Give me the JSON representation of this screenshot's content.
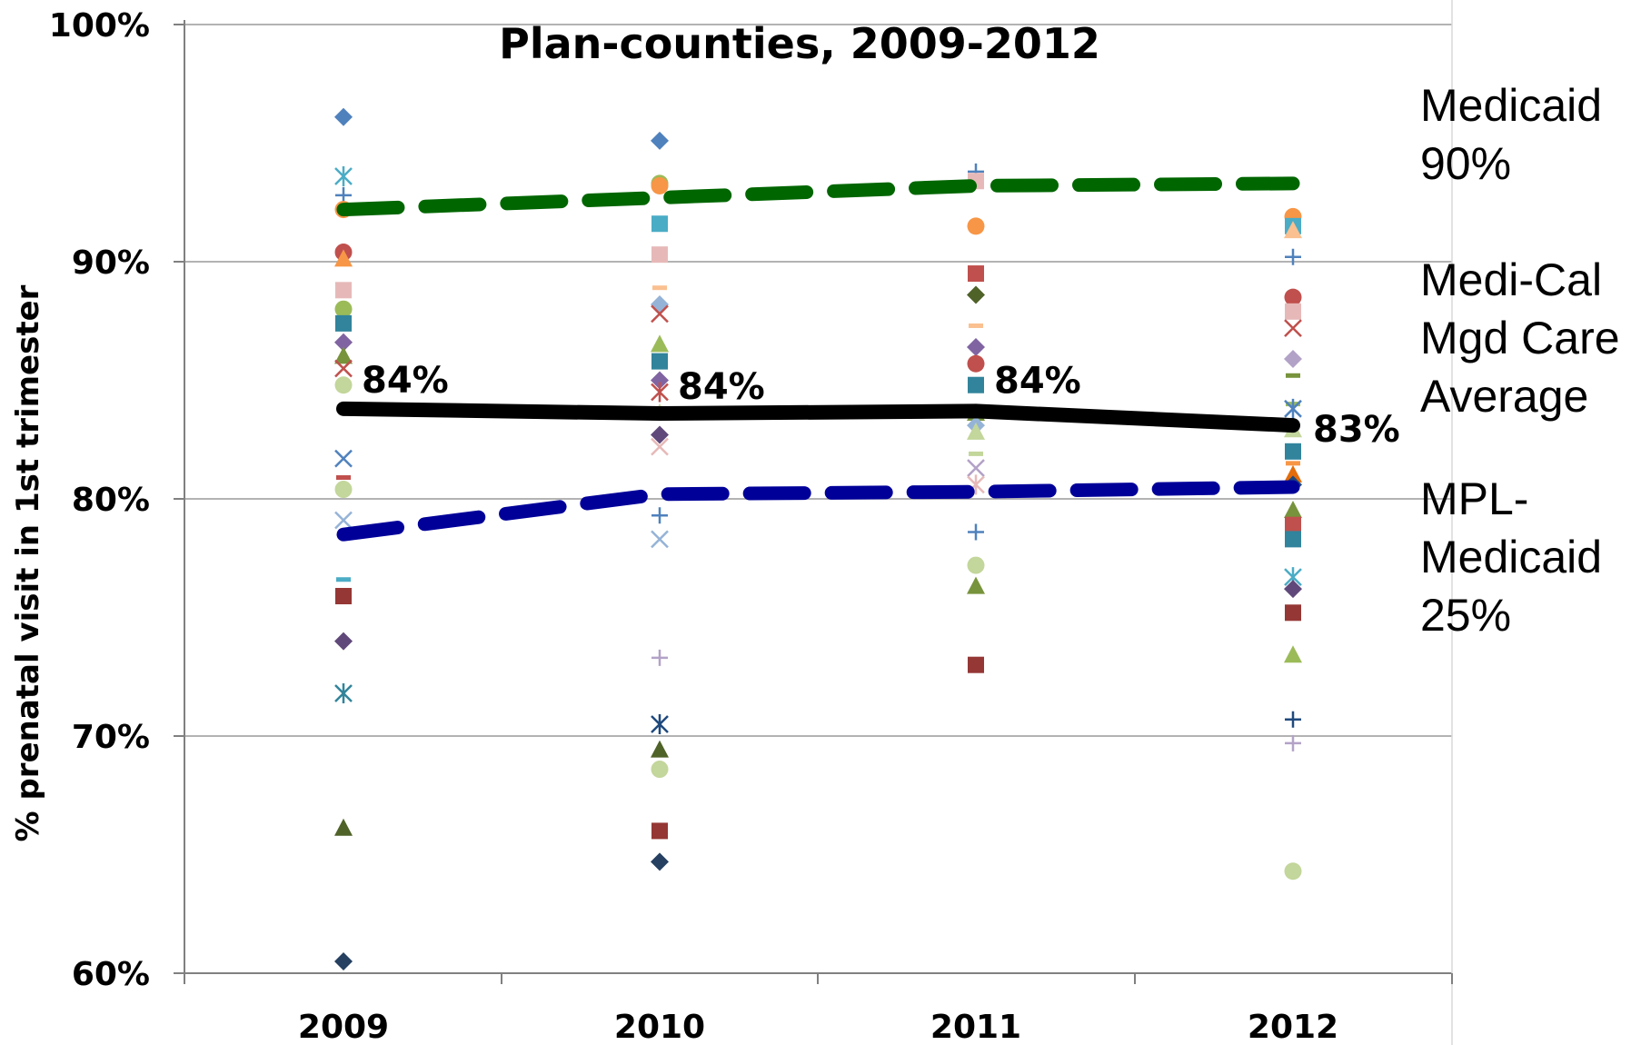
{
  "chart_data": {
    "type": "scatter",
    "title": "Plan-counties, 2009-2012",
    "xlabel": "",
    "ylabel": "% prenatal visit in 1st trimester",
    "categories": [
      "2009",
      "2010",
      "2011",
      "2012"
    ],
    "ylim": [
      0.6,
      1.0
    ],
    "y_ticks": [
      0.6,
      0.7,
      0.8,
      0.9,
      1.0
    ],
    "y_tick_labels": [
      "60%",
      "70%",
      "80%",
      "90%",
      "100%"
    ],
    "grid": true,
    "reference_lines": [
      {
        "name": "Medicaid 90%",
        "label_lines": [
          "Medicaid",
          "90%"
        ],
        "values": [
          0.922,
          0.927,
          0.932,
          0.933
        ],
        "color": "#006600",
        "style": "dashed"
      },
      {
        "name": "Medi-Cal Mgd Care Average",
        "label_lines": [
          "Medi-Cal",
          "Mgd Care",
          "Average"
        ],
        "values": [
          0.838,
          0.836,
          0.837,
          0.831
        ],
        "data_labels": [
          "84%",
          "84%",
          "84%",
          "83%"
        ],
        "color": "#000000",
        "style": "solid"
      },
      {
        "name": "MPL-Medicaid 25%",
        "label_lines": [
          "MPL-",
          "Medicaid",
          "25%"
        ],
        "values": [
          0.785,
          0.802,
          0.803,
          0.805
        ],
        "color": "#000099",
        "style": "dashed"
      }
    ],
    "county_points": [
      {
        "year": "2009",
        "value": 0.961,
        "marker": "diamond",
        "color": "#4F81BD"
      },
      {
        "year": "2009",
        "value": 0.936,
        "marker": "star",
        "color": "#4BACC6"
      },
      {
        "year": "2009",
        "value": 0.928,
        "marker": "plus",
        "color": "#4F81BD"
      },
      {
        "year": "2009",
        "value": 0.922,
        "marker": "circle",
        "color": "#F79646"
      },
      {
        "year": "2009",
        "value": 0.904,
        "marker": "circle",
        "color": "#C0504D"
      },
      {
        "year": "2009",
        "value": 0.901,
        "marker": "triangle",
        "color": "#F79646"
      },
      {
        "year": "2009",
        "value": 0.888,
        "marker": "square",
        "color": "#E6B9B8"
      },
      {
        "year": "2009",
        "value": 0.88,
        "marker": "circle",
        "color": "#9BBB59"
      },
      {
        "year": "2009",
        "value": 0.874,
        "marker": "square",
        "color": "#31849B"
      },
      {
        "year": "2009",
        "value": 0.866,
        "marker": "diamond",
        "color": "#8064A2"
      },
      {
        "year": "2009",
        "value": 0.86,
        "marker": "triangle",
        "color": "#77933C"
      },
      {
        "year": "2009",
        "value": 0.855,
        "marker": "x",
        "color": "#C0504D"
      },
      {
        "year": "2009",
        "value": 0.848,
        "marker": "circle",
        "color": "#C3D69B"
      },
      {
        "year": "2009",
        "value": 0.817,
        "marker": "x",
        "color": "#4F81BD"
      },
      {
        "year": "2009",
        "value": 0.809,
        "marker": "dash",
        "color": "#C0504D"
      },
      {
        "year": "2009",
        "value": 0.804,
        "marker": "circle",
        "color": "#C3D69B"
      },
      {
        "year": "2009",
        "value": 0.791,
        "marker": "x",
        "color": "#95B3D7"
      },
      {
        "year": "2009",
        "value": 0.766,
        "marker": "dash",
        "color": "#4BACC6"
      },
      {
        "year": "2009",
        "value": 0.759,
        "marker": "square",
        "color": "#953735"
      },
      {
        "year": "2009",
        "value": 0.74,
        "marker": "diamond",
        "color": "#60497A"
      },
      {
        "year": "2009",
        "value": 0.718,
        "marker": "star",
        "color": "#31849B"
      },
      {
        "year": "2009",
        "value": 0.661,
        "marker": "triangle",
        "color": "#4F6228"
      },
      {
        "year": "2009",
        "value": 0.605,
        "marker": "diamond",
        "color": "#254061"
      },
      {
        "year": "2010",
        "value": 0.951,
        "marker": "diamond",
        "color": "#4F81BD"
      },
      {
        "year": "2010",
        "value": 0.933,
        "marker": "circle",
        "color": "#9BBB59"
      },
      {
        "year": "2010",
        "value": 0.932,
        "marker": "circle",
        "color": "#F79646"
      },
      {
        "year": "2010",
        "value": 0.916,
        "marker": "square",
        "color": "#4BACC6"
      },
      {
        "year": "2010",
        "value": 0.903,
        "marker": "square",
        "color": "#E6B9B8"
      },
      {
        "year": "2010",
        "value": 0.889,
        "marker": "dash",
        "color": "#FAC090"
      },
      {
        "year": "2010",
        "value": 0.882,
        "marker": "diamond",
        "color": "#95B3D7"
      },
      {
        "year": "2010",
        "value": 0.878,
        "marker": "x",
        "color": "#C0504D"
      },
      {
        "year": "2010",
        "value": 0.865,
        "marker": "triangle",
        "color": "#9BBB59"
      },
      {
        "year": "2010",
        "value": 0.858,
        "marker": "square",
        "color": "#31849B"
      },
      {
        "year": "2010",
        "value": 0.85,
        "marker": "diamond",
        "color": "#8064A2"
      },
      {
        "year": "2010",
        "value": 0.845,
        "marker": "star",
        "color": "#C0504D"
      },
      {
        "year": "2010",
        "value": 0.836,
        "marker": "triangle",
        "color": "#C3D69B"
      },
      {
        "year": "2010",
        "value": 0.827,
        "marker": "diamond",
        "color": "#60497A"
      },
      {
        "year": "2010",
        "value": 0.822,
        "marker": "x",
        "color": "#E6B9B8"
      },
      {
        "year": "2010",
        "value": 0.793,
        "marker": "plus",
        "color": "#4F81BD"
      },
      {
        "year": "2010",
        "value": 0.783,
        "marker": "x",
        "color": "#95B3D7"
      },
      {
        "year": "2010",
        "value": 0.733,
        "marker": "plus",
        "color": "#B3A2C7"
      },
      {
        "year": "2010",
        "value": 0.705,
        "marker": "star",
        "color": "#1F497D"
      },
      {
        "year": "2010",
        "value": 0.694,
        "marker": "triangle",
        "color": "#4F6228"
      },
      {
        "year": "2010",
        "value": 0.686,
        "marker": "circle",
        "color": "#C3D69B"
      },
      {
        "year": "2010",
        "value": 0.66,
        "marker": "square",
        "color": "#953735"
      },
      {
        "year": "2010",
        "value": 0.647,
        "marker": "diamond",
        "color": "#254061"
      },
      {
        "year": "2011",
        "value": 0.938,
        "marker": "plus",
        "color": "#4F81BD"
      },
      {
        "year": "2011",
        "value": 0.934,
        "marker": "square",
        "color": "#E6B9B8"
      },
      {
        "year": "2011",
        "value": 0.915,
        "marker": "circle",
        "color": "#F79646"
      },
      {
        "year": "2011",
        "value": 0.895,
        "marker": "square",
        "color": "#C0504D"
      },
      {
        "year": "2011",
        "value": 0.886,
        "marker": "diamond",
        "color": "#4F6228"
      },
      {
        "year": "2011",
        "value": 0.873,
        "marker": "dash",
        "color": "#FAC090"
      },
      {
        "year": "2011",
        "value": 0.864,
        "marker": "diamond",
        "color": "#8064A2"
      },
      {
        "year": "2011",
        "value": 0.857,
        "marker": "circle",
        "color": "#C0504D"
      },
      {
        "year": "2011",
        "value": 0.848,
        "marker": "square",
        "color": "#31849B"
      },
      {
        "year": "2011",
        "value": 0.836,
        "marker": "triangle",
        "color": "#77933C"
      },
      {
        "year": "2011",
        "value": 0.831,
        "marker": "diamond",
        "color": "#95B3D7"
      },
      {
        "year": "2011",
        "value": 0.828,
        "marker": "triangle",
        "color": "#C3D69B"
      },
      {
        "year": "2011",
        "value": 0.819,
        "marker": "dash",
        "color": "#C3D69B"
      },
      {
        "year": "2011",
        "value": 0.813,
        "marker": "x",
        "color": "#B3A2C7"
      },
      {
        "year": "2011",
        "value": 0.806,
        "marker": "star",
        "color": "#E6B9B8"
      },
      {
        "year": "2011",
        "value": 0.786,
        "marker": "plus",
        "color": "#4F81BD"
      },
      {
        "year": "2011",
        "value": 0.772,
        "marker": "circle",
        "color": "#C3D69B"
      },
      {
        "year": "2011",
        "value": 0.763,
        "marker": "triangle",
        "color": "#77933C"
      },
      {
        "year": "2011",
        "value": 0.73,
        "marker": "square",
        "color": "#953735"
      },
      {
        "year": "2012",
        "value": 0.919,
        "marker": "circle",
        "color": "#F79646"
      },
      {
        "year": "2012",
        "value": 0.915,
        "marker": "square",
        "color": "#4BACC6"
      },
      {
        "year": "2012",
        "value": 0.913,
        "marker": "triangle",
        "color": "#FAC090"
      },
      {
        "year": "2012",
        "value": 0.902,
        "marker": "plus",
        "color": "#4F81BD"
      },
      {
        "year": "2012",
        "value": 0.885,
        "marker": "circle",
        "color": "#C0504D"
      },
      {
        "year": "2012",
        "value": 0.879,
        "marker": "square",
        "color": "#E6B9B8"
      },
      {
        "year": "2012",
        "value": 0.872,
        "marker": "x",
        "color": "#C0504D"
      },
      {
        "year": "2012",
        "value": 0.859,
        "marker": "diamond",
        "color": "#B3A2C7"
      },
      {
        "year": "2012",
        "value": 0.852,
        "marker": "dash",
        "color": "#77933C"
      },
      {
        "year": "2012",
        "value": 0.84,
        "marker": "dash",
        "color": "#9BBB59"
      },
      {
        "year": "2012",
        "value": 0.838,
        "marker": "star",
        "color": "#4F81BD"
      },
      {
        "year": "2012",
        "value": 0.829,
        "marker": "triangle",
        "color": "#C3D69B"
      },
      {
        "year": "2012",
        "value": 0.82,
        "marker": "square",
        "color": "#31849B"
      },
      {
        "year": "2012",
        "value": 0.815,
        "marker": "dash",
        "color": "#F79646"
      },
      {
        "year": "2012",
        "value": 0.81,
        "marker": "triangle",
        "color": "#E46C0A"
      },
      {
        "year": "2012",
        "value": 0.806,
        "marker": "diamond",
        "color": "#1F497D"
      },
      {
        "year": "2012",
        "value": 0.795,
        "marker": "triangle",
        "color": "#77933C"
      },
      {
        "year": "2012",
        "value": 0.789,
        "marker": "square",
        "color": "#C0504D"
      },
      {
        "year": "2012",
        "value": 0.783,
        "marker": "square",
        "color": "#31849B"
      },
      {
        "year": "2012",
        "value": 0.767,
        "marker": "star",
        "color": "#4BACC6"
      },
      {
        "year": "2012",
        "value": 0.762,
        "marker": "diamond",
        "color": "#60497A"
      },
      {
        "year": "2012",
        "value": 0.752,
        "marker": "square",
        "color": "#953735"
      },
      {
        "year": "2012",
        "value": 0.734,
        "marker": "triangle",
        "color": "#9BBB59"
      },
      {
        "year": "2012",
        "value": 0.707,
        "marker": "plus",
        "color": "#1F497D"
      },
      {
        "year": "2012",
        "value": 0.697,
        "marker": "plus",
        "color": "#B3A2C7"
      },
      {
        "year": "2012",
        "value": 0.643,
        "marker": "circle",
        "color": "#C3D69B"
      }
    ]
  }
}
